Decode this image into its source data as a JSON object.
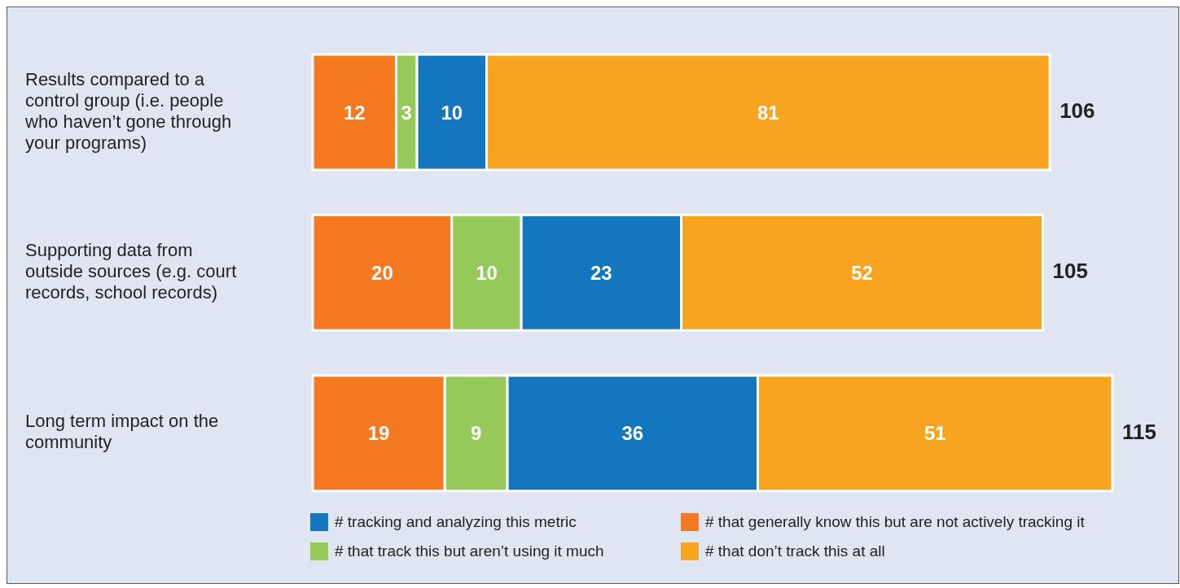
{
  "chart_data": {
    "type": "bar",
    "orientation": "horizontal",
    "stacked": true,
    "data_labels": true,
    "legend": "bottom",
    "grid": false,
    "categories": [
      "Results compared to a control group (i.e. people who haven’t gone through your programs)",
      "Supporting data from outside sources (e.g. court records, school records)",
      "Long term impact on the community"
    ],
    "series": [
      {
        "name": "# that generally know this but are not actively tracking it",
        "color": "#f47920",
        "values": [
          12,
          20,
          19
        ]
      },
      {
        "name": "# that track this but aren’t using it much",
        "color": "#95c95a",
        "values": [
          3,
          10,
          9
        ]
      },
      {
        "name": "# tracking and analyzing this metric",
        "color": "#1476bc",
        "values": [
          10,
          23,
          36
        ]
      },
      {
        "name": "# that don’t track this at all",
        "color": "#f7a520",
        "values": [
          81,
          52,
          51
        ]
      }
    ],
    "totals": [
      "106",
      "105",
      "115"
    ]
  }
}
